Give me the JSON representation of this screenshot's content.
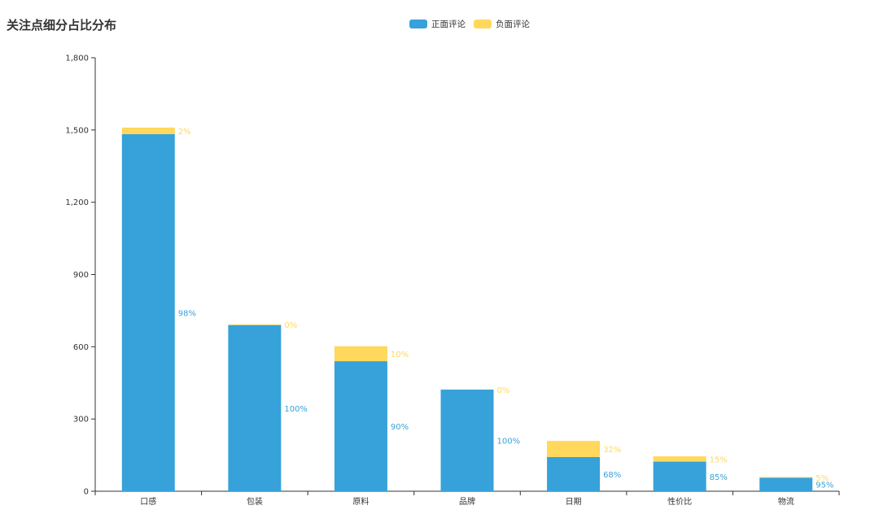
{
  "chart_data": {
    "type": "bar",
    "stacked": true,
    "title": "关注点细分占比分布",
    "categories": [
      "口感",
      "包装",
      "原料",
      "品牌",
      "日期",
      "性价比",
      "物流"
    ],
    "series": [
      {
        "name": "正面评论",
        "color": "#37a2da",
        "values": [
          1483,
          690,
          540,
          422,
          142,
          123,
          56
        ],
        "labels": [
          "98%",
          "100%",
          "90%",
          "100%",
          "68%",
          "85%",
          "95%"
        ]
      },
      {
        "name": "负面评论",
        "color": "#ffd85c",
        "values": [
          27,
          3,
          62,
          0,
          67,
          22,
          3
        ],
        "labels": [
          "2%",
          "0%",
          "10%",
          "0%",
          "32%",
          "15%",
          "5%"
        ]
      }
    ],
    "ylim": [
      0,
      1800
    ],
    "yticks": [
      0,
      300,
      600,
      900,
      1200,
      1500,
      1800
    ],
    "ytick_labels": [
      "0",
      "300",
      "600",
      "900",
      "1,200",
      "1,500",
      "1,800"
    ],
    "legend_position": "top-center",
    "grid": false
  }
}
